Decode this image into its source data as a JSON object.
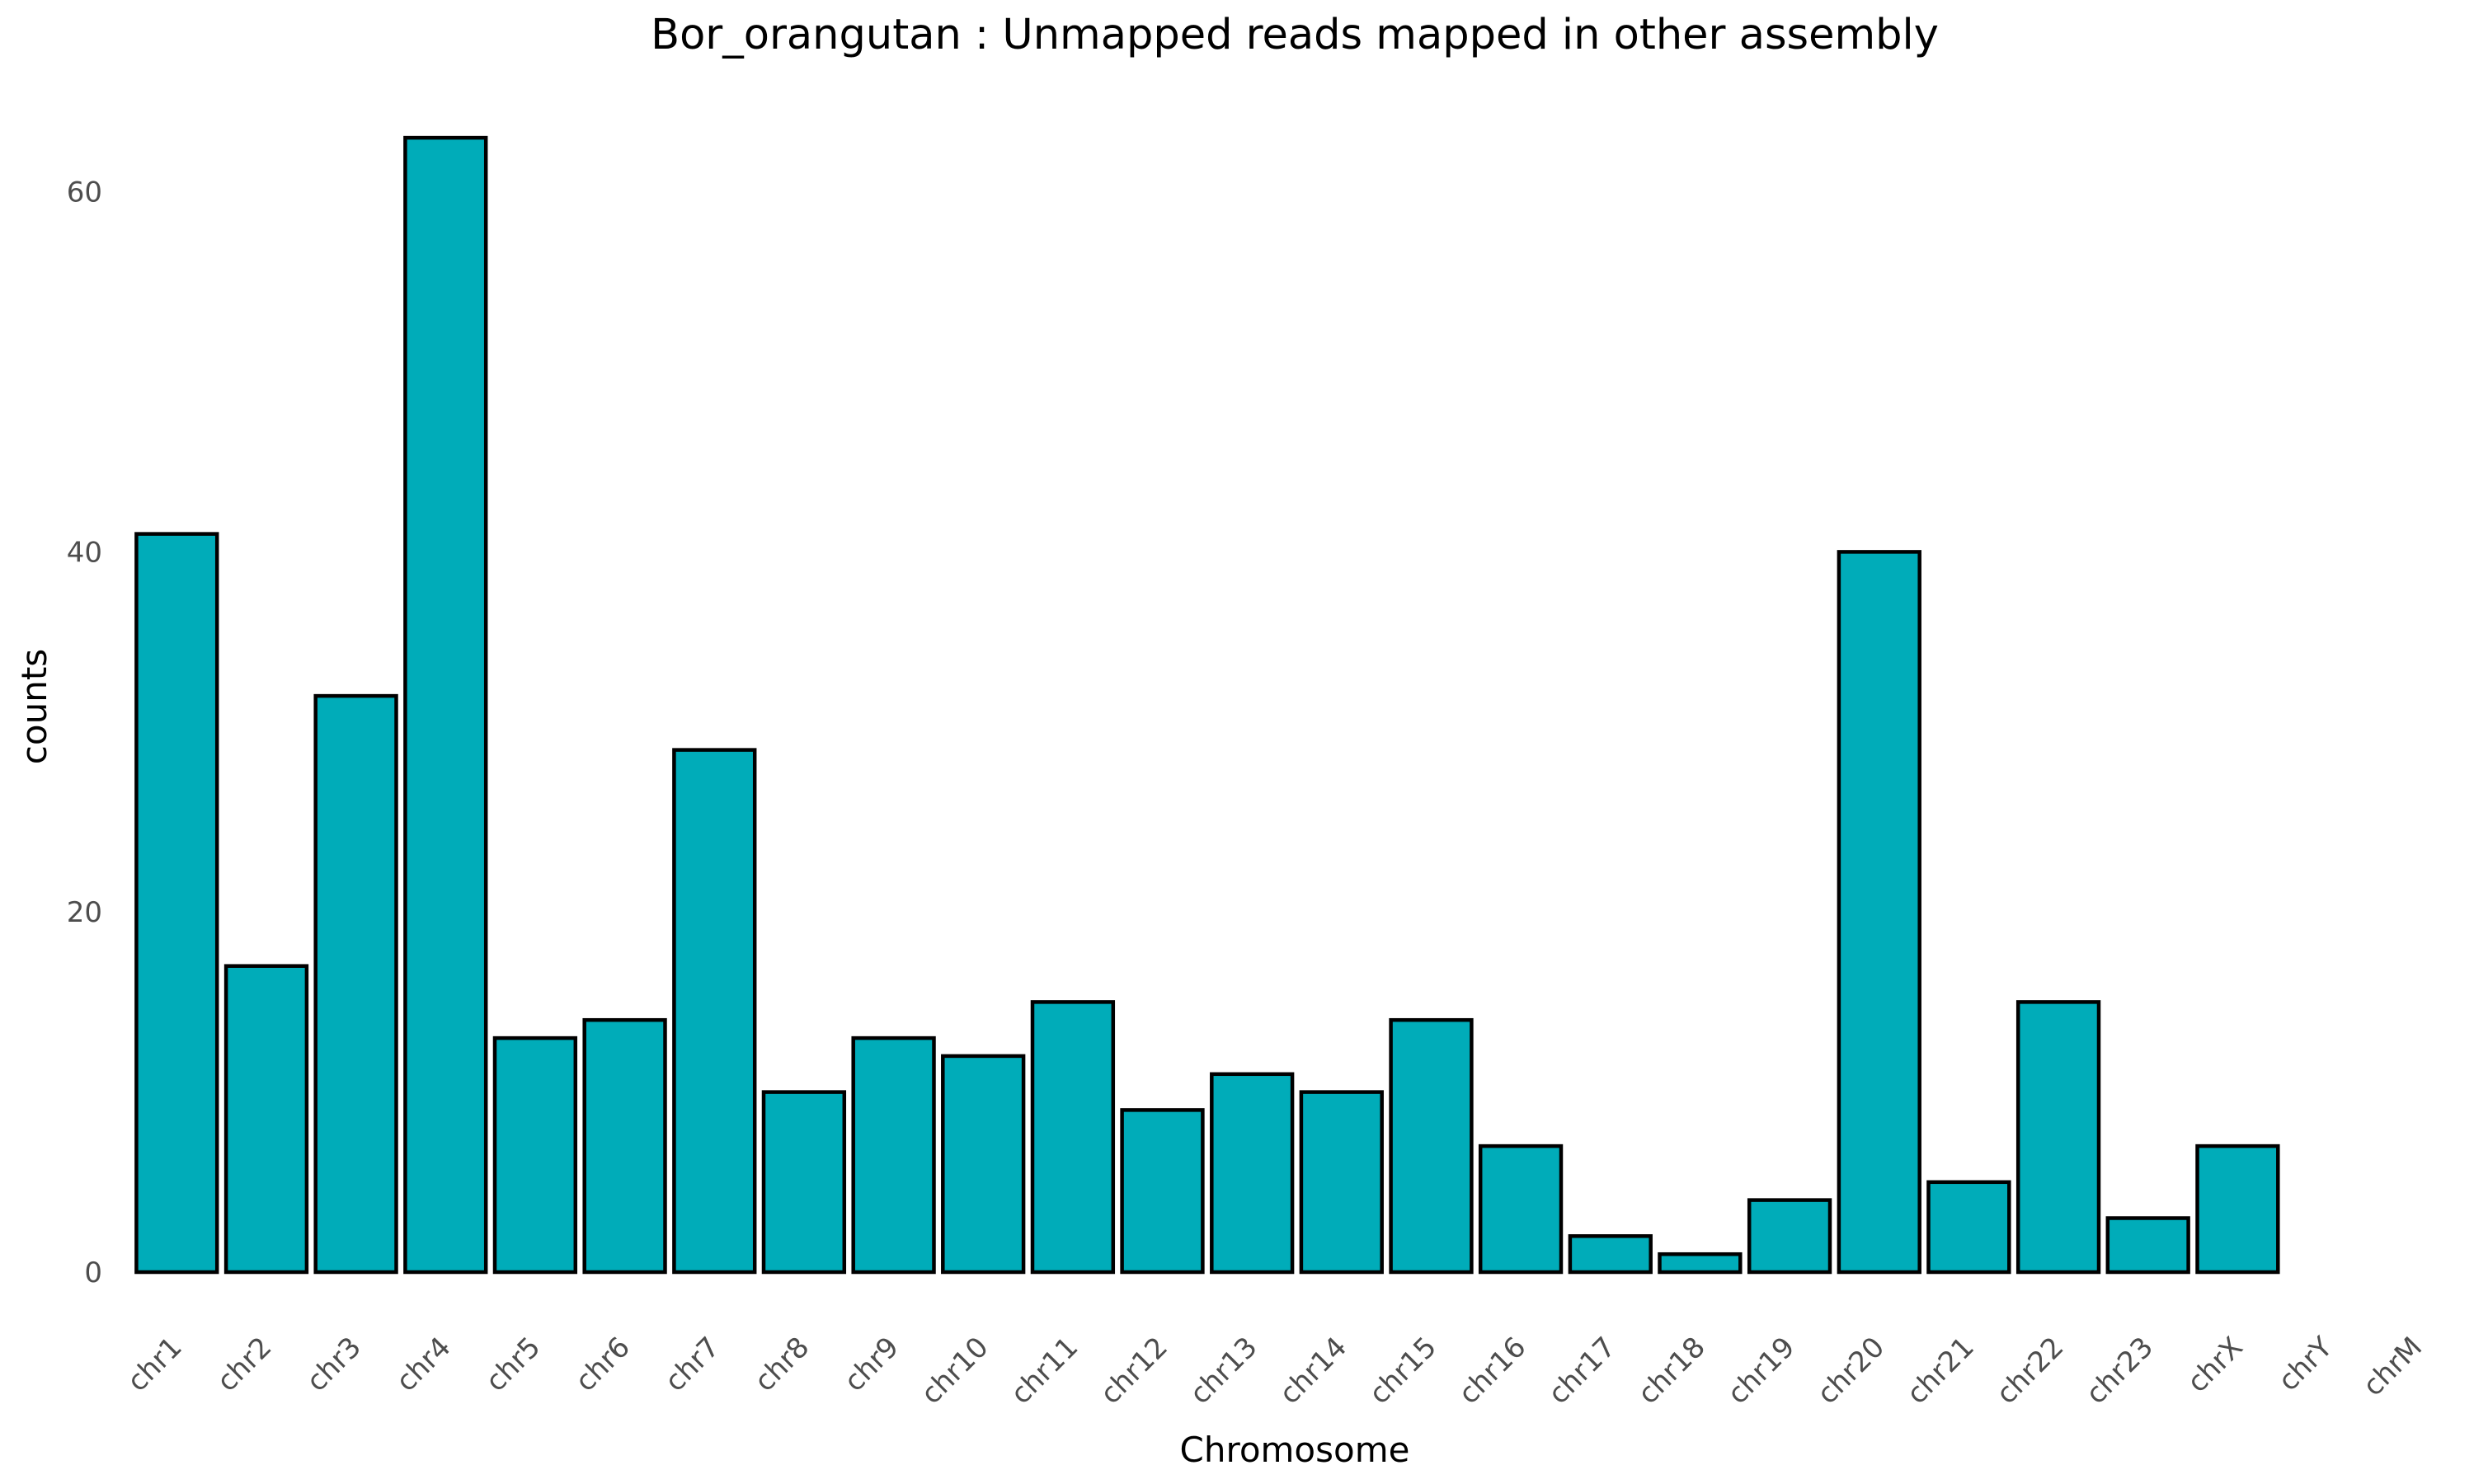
{
  "colors": {
    "background": "#ffffff",
    "bar_fill": "#00acb9",
    "bar_outline": "#000000",
    "tick_text": "#4d4d4d",
    "title_text": "#000000"
  },
  "chart_data": {
    "type": "bar",
    "title": "Bor_orangutan : Unmapped reads mapped in other assembly",
    "xlabel": "Chromosome",
    "ylabel": "counts",
    "categories": [
      "chr1",
      "chr2",
      "chr3",
      "chr4",
      "chr5",
      "chr6",
      "chr7",
      "chr8",
      "chr9",
      "chr10",
      "chr11",
      "chr12",
      "chr13",
      "chr14",
      "chr15",
      "chr16",
      "chr17",
      "chr18",
      "chr19",
      "chr20",
      "chr21",
      "chr22",
      "chr23",
      "chrX",
      "chrY",
      "chrM"
    ],
    "values": [
      41,
      17,
      32,
      63,
      13,
      14,
      29,
      10,
      13,
      12,
      15,
      9,
      11,
      10,
      14,
      7,
      2,
      1,
      4,
      40,
      5,
      15,
      3,
      7,
      0,
      0
    ],
    "yticks": [
      "0",
      "20",
      "40",
      "60"
    ],
    "ylim": [
      0,
      65
    ],
    "grid": false,
    "legend": "none",
    "x_tick_rotation": "45 degrees"
  }
}
